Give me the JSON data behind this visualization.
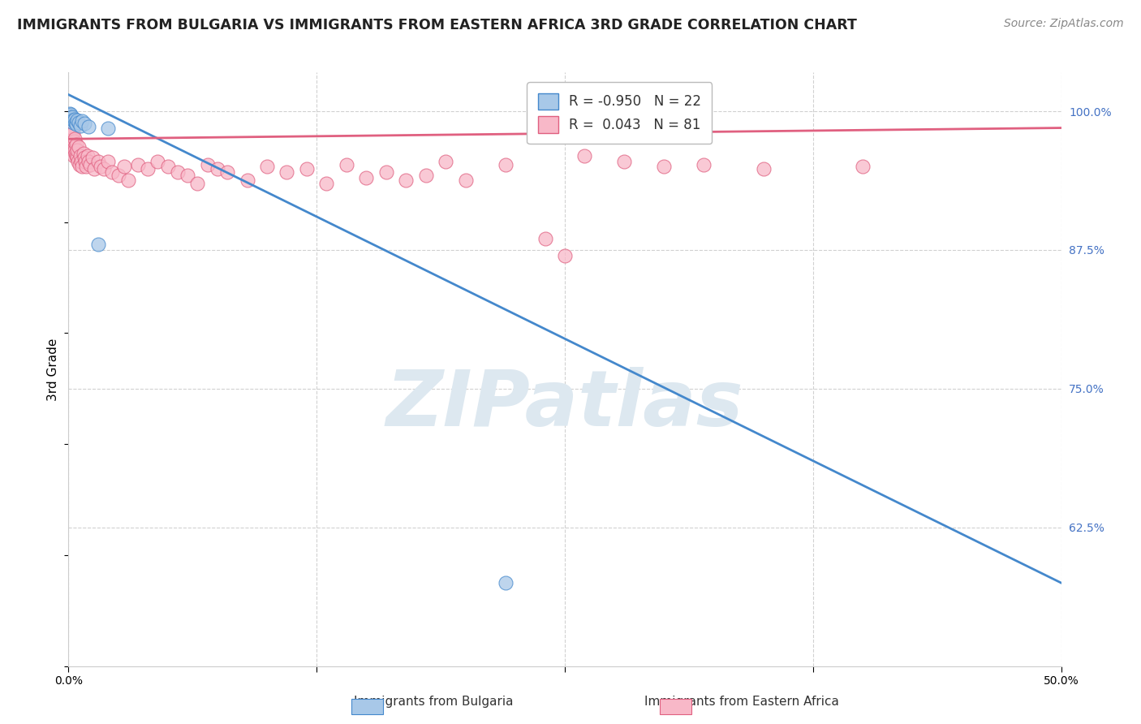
{
  "title": "IMMIGRANTS FROM BULGARIA VS IMMIGRANTS FROM EASTERN AFRICA 3RD GRADE CORRELATION CHART",
  "source": "Source: ZipAtlas.com",
  "ylabel": "3rd Grade",
  "xlim": [
    0.0,
    50.0
  ],
  "ylim": [
    50.0,
    103.5
  ],
  "x_ticks": [
    0.0,
    12.5,
    25.0,
    37.5,
    50.0
  ],
  "x_tick_labels": [
    "0.0%",
    "",
    "",
    "",
    "50.0%"
  ],
  "y_ticks_right": [
    62.5,
    75.0,
    87.5,
    100.0
  ],
  "y_tick_labels_right": [
    "62.5%",
    "75.0%",
    "87.5%",
    "100.0%"
  ],
  "bulgaria_R": -0.95,
  "bulgaria_N": 22,
  "eastern_africa_R": 0.043,
  "eastern_africa_N": 81,
  "bulgaria_color": "#a8c8e8",
  "bulgaria_line_color": "#4488cc",
  "eastern_africa_color": "#f8b8c8",
  "eastern_africa_line_color": "#e06080",
  "watermark": "ZIPatlas",
  "watermark_color": "#dde8f0",
  "background_color": "#ffffff",
  "grid_color": "#cccccc",
  "bulgaria_x": [
    0.05,
    0.08,
    0.1,
    0.12,
    0.15,
    0.18,
    0.2,
    0.22,
    0.25,
    0.28,
    0.3,
    0.35,
    0.4,
    0.45,
    0.5,
    0.6,
    0.7,
    0.8,
    1.0,
    1.5,
    2.0,
    22.0
  ],
  "bulgaria_y": [
    99.8,
    99.6,
    99.5,
    99.7,
    99.4,
    99.3,
    99.5,
    99.2,
    99.0,
    99.1,
    99.3,
    99.0,
    98.8,
    99.2,
    99.0,
    98.7,
    99.1,
    98.9,
    98.6,
    88.0,
    98.5,
    57.5
  ],
  "eastern_africa_x": [
    0.05,
    0.07,
    0.08,
    0.1,
    0.1,
    0.12,
    0.13,
    0.14,
    0.15,
    0.16,
    0.17,
    0.18,
    0.2,
    0.22,
    0.23,
    0.24,
    0.25,
    0.26,
    0.28,
    0.3,
    0.3,
    0.32,
    0.35,
    0.38,
    0.4,
    0.42,
    0.45,
    0.48,
    0.5,
    0.55,
    0.6,
    0.65,
    0.7,
    0.75,
    0.8,
    0.85,
    0.9,
    0.95,
    1.0,
    1.1,
    1.2,
    1.3,
    1.5,
    1.6,
    1.8,
    2.0,
    2.2,
    2.5,
    2.8,
    3.0,
    3.5,
    4.0,
    4.5,
    5.0,
    5.5,
    6.0,
    6.5,
    7.0,
    7.5,
    8.0,
    9.0,
    10.0,
    11.0,
    12.0,
    13.0,
    14.0,
    15.0,
    16.0,
    17.0,
    18.0,
    19.0,
    20.0,
    22.0,
    24.0,
    25.0,
    26.0,
    28.0,
    30.0,
    32.0,
    35.0,
    40.0
  ],
  "eastern_africa_y": [
    99.0,
    98.8,
    99.2,
    98.5,
    99.5,
    98.0,
    98.7,
    99.0,
    97.8,
    98.3,
    97.5,
    98.5,
    97.2,
    98.0,
    97.0,
    96.8,
    96.5,
    97.3,
    96.0,
    97.5,
    96.8,
    96.5,
    96.2,
    96.0,
    97.0,
    95.8,
    96.5,
    95.5,
    96.8,
    95.2,
    96.0,
    95.5,
    95.0,
    96.2,
    95.8,
    95.5,
    95.0,
    96.0,
    95.5,
    95.2,
    95.8,
    94.8,
    95.5,
    95.0,
    94.8,
    95.5,
    94.5,
    94.2,
    95.0,
    93.8,
    95.2,
    94.8,
    95.5,
    95.0,
    94.5,
    94.2,
    93.5,
    95.2,
    94.8,
    94.5,
    93.8,
    95.0,
    94.5,
    94.8,
    93.5,
    95.2,
    94.0,
    94.5,
    93.8,
    94.2,
    95.5,
    93.8,
    95.2,
    88.5,
    87.0,
    96.0,
    95.5,
    95.0,
    95.2,
    94.8,
    95.0
  ],
  "bul_line_x0": 0.0,
  "bul_line_y0": 101.5,
  "bul_line_x1": 50.0,
  "bul_line_y1": 57.5,
  "ea_line_x0": 0.0,
  "ea_line_y0": 97.5,
  "ea_line_x1": 50.0,
  "ea_line_y1": 98.5
}
